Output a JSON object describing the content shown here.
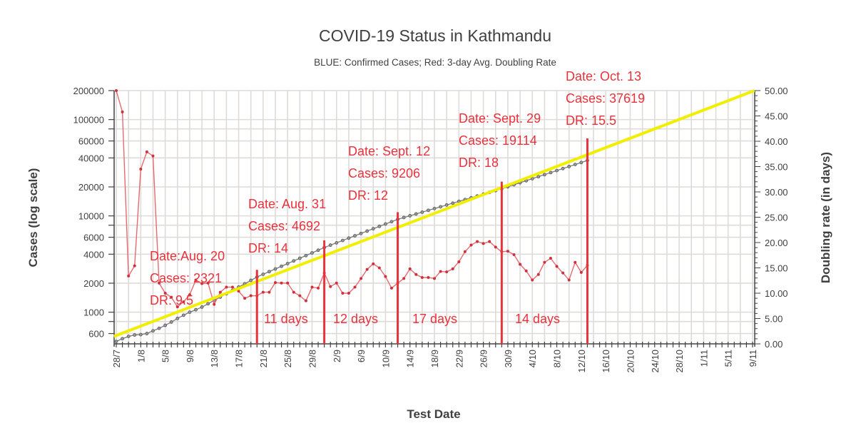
{
  "chart_data": {
    "type": "line",
    "title": "COVID-19 Status in Kathmandu",
    "subtitle": "BLUE: Confirmed Cases; Red: 3-day Avg. Doubling Rate",
    "xlabel": "Test Date",
    "ylabel": "Cases (log scale)",
    "y2label": "Doubling rate (in days)",
    "x_tick_labels": [
      "28/7",
      "1/8",
      "5/8",
      "9/8",
      "13/8",
      "17/8",
      "21/8",
      "25/8",
      "29/8",
      "2/9",
      "6/9",
      "10/9",
      "14/9",
      "18/9",
      "22/9",
      "26/9",
      "30/9",
      "4/10",
      "8/10",
      "12/10",
      "16/10",
      "20/10",
      "24/10",
      "28/10",
      "1/11",
      "5/11",
      "9/11"
    ],
    "x_start_date": "28/7",
    "x_tick_step_days": 4,
    "y_scale": "log",
    "ylim": [
      469,
      200000
    ],
    "y_tick_labels": [
      "200000",
      "100000",
      "60000",
      "40000",
      "20000",
      "10000",
      "6000",
      "4000",
      "2000",
      "1000",
      "600"
    ],
    "y2lim": [
      0,
      50
    ],
    "y2_tick_labels": [
      "0.00",
      "5.00",
      "10.00",
      "15.00",
      "20.00",
      "25.00",
      "30.00",
      "35.00",
      "40.00",
      "45.00",
      "50.00"
    ],
    "grid": true,
    "colors": {
      "cases": "#7a7a7a",
      "doubling_rate": "#e66a70",
      "trend": "#f2ee00",
      "annotation": "#e8323c"
    },
    "series": [
      {
        "axis": "left",
        "key": "cases",
        "values": [
          497,
          530,
          560,
          580,
          585,
          600,
          640,
          680,
          730,
          790,
          860,
          930,
          1000,
          1060,
          1130,
          1224,
          1325,
          1435,
          1554,
          1683,
          1823,
          1974,
          2138,
          2321,
          2475,
          2638,
          2812,
          2998,
          3196,
          3407,
          3632,
          3872,
          4127,
          4400,
          4692,
          4963,
          5250,
          5554,
          5875,
          6215,
          6574,
          6954,
          7356,
          7781,
          8231,
          8707,
          9206,
          9610,
          10032,
          10473,
          10933,
          11413,
          11914,
          12437,
          12983,
          13553,
          14148,
          14769,
          15418,
          16095,
          16802,
          17540,
          18310,
          19114,
          20062,
          21057,
          22101,
          23197,
          24347,
          25555,
          26822,
          28152,
          29548,
          31013,
          32551,
          34165,
          35859,
          37619
        ]
      },
      {
        "axis": "right",
        "key": "doubling_rate",
        "values": [
          50,
          45.8,
          13.4,
          15.4,
          34.5,
          37.9,
          37.1,
          12.0,
          10.0,
          9.2,
          7.3,
          8.3,
          9.7,
          12.6,
          11.9,
          12.0,
          7.8,
          10.2,
          11.2,
          11.2,
          10.4,
          9.0,
          9.5,
          9.5,
          10.2,
          10.2,
          12.1,
          12.0,
          12.0,
          10.2,
          9.5,
          8.5,
          11.2,
          11.0,
          14.0,
          11.3,
          12.0,
          10.0,
          10.0,
          11.2,
          12.9,
          14.7,
          15.8,
          15.0,
          13.3,
          11.0,
          12.0,
          12.9,
          14.8,
          13.7,
          13.1,
          13.1,
          12.9,
          14.3,
          14.2,
          14.8,
          16.2,
          18.2,
          19.5,
          20.2,
          19.8,
          20.2,
          19.1,
          18.2,
          18.3,
          17.6,
          15.7,
          14.4,
          12.6,
          13.7,
          16.1,
          16.9,
          15.3,
          14.0,
          12.6,
          16.1,
          14.1,
          15.5
        ]
      }
    ],
    "trendline": {
      "axis": "left",
      "x_days": [
        -0.4,
        104.3
      ],
      "y": [
        560,
        200000
      ]
    },
    "annotations": [
      {
        "day": 23,
        "lines": [
          "Date:Aug. 20",
          "Cases: 2321",
          "DR: 9.5"
        ]
      },
      {
        "day": 34,
        "lines": [
          "Date: Aug. 31",
          "Cases: 4692",
          "DR: 14"
        ]
      },
      {
        "day": 46,
        "lines": [
          "Date: Sept. 12",
          "Cases: 9206",
          "DR: 12"
        ]
      },
      {
        "day": 63,
        "lines": [
          "Date: Sept. 29",
          "Cases: 19114",
          "DR: 18"
        ]
      },
      {
        "day": 77,
        "lines": [
          "Date: Oct. 13",
          "Cases: 37619",
          "DR: 15.5"
        ]
      }
    ],
    "intervals": [
      "11 days",
      "12 days",
      "17 days",
      "14 days"
    ]
  }
}
